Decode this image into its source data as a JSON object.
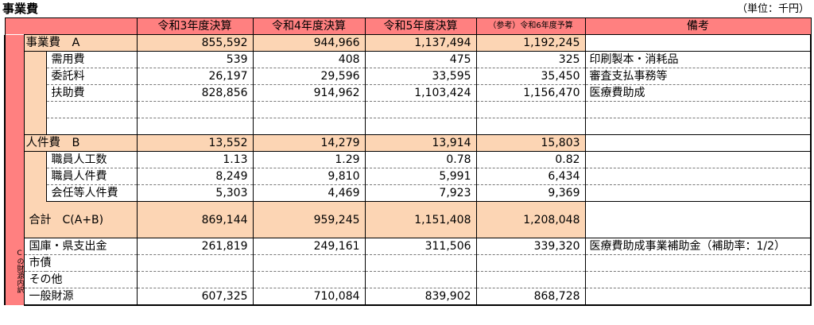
{
  "title": "事業費",
  "unit": "（単位：千円）",
  "headers": [
    "令和3年度決算",
    "令和4年度決算",
    "令和5年度決算",
    "（参考）令和6年度予算",
    "備考"
  ],
  "groupA": {
    "label": "事業費　A",
    "values": [
      "855,592",
      "944,966",
      "1,137,494",
      "1,192,245"
    ],
    "note": "",
    "items": [
      {
        "label": "需用費",
        "values": [
          "539",
          "408",
          "475",
          "325"
        ],
        "note": "印刷製本・消耗品"
      },
      {
        "label": "委託料",
        "values": [
          "26,197",
          "29,596",
          "33,595",
          "35,450"
        ],
        "note": "審査支払事務等"
      },
      {
        "label": "扶助費",
        "values": [
          "828,856",
          "914,962",
          "1,103,424",
          "1,156,470"
        ],
        "note": "医療費助成"
      },
      {
        "label": "",
        "values": [
          "",
          "",
          "",
          ""
        ],
        "note": ""
      },
      {
        "label": "",
        "values": [
          "",
          "",
          "",
          ""
        ],
        "note": ""
      }
    ]
  },
  "groupB": {
    "label": "人件費　B",
    "values": [
      "13,552",
      "14,279",
      "13,914",
      "15,803"
    ],
    "note": "",
    "items": [
      {
        "label": "職員人工数",
        "values": [
          "1.13",
          "1.29",
          "0.78",
          "0.82"
        ],
        "note": ""
      },
      {
        "label": "職員人件費",
        "values": [
          "8,249",
          "9,810",
          "5,991",
          "6,434"
        ],
        "note": ""
      },
      {
        "label": "会任等人件費",
        "values": [
          "5,303",
          "4,469",
          "7,923",
          "9,369"
        ],
        "note": ""
      }
    ]
  },
  "total": {
    "label": "合計　C(A+B)",
    "values": [
      "869,144",
      "959,245",
      "1,151,408",
      "1,208,048"
    ],
    "note": ""
  },
  "finance": {
    "side_label": "Cの財源内訳",
    "items": [
      {
        "label": "国庫・県支出金",
        "values": [
          "261,819",
          "249,161",
          "311,506",
          "339,320"
        ],
        "note": "医療費助成事業補助金（補助率：1/2）"
      },
      {
        "label": "市債",
        "values": [
          "",
          "",
          "",
          ""
        ],
        "note": ""
      },
      {
        "label": "その他",
        "values": [
          "",
          "",
          "",
          ""
        ],
        "note": ""
      },
      {
        "label": "一般財源",
        "values": [
          "607,325",
          "710,084",
          "839,902",
          "868,728"
        ],
        "note": ""
      }
    ]
  }
}
